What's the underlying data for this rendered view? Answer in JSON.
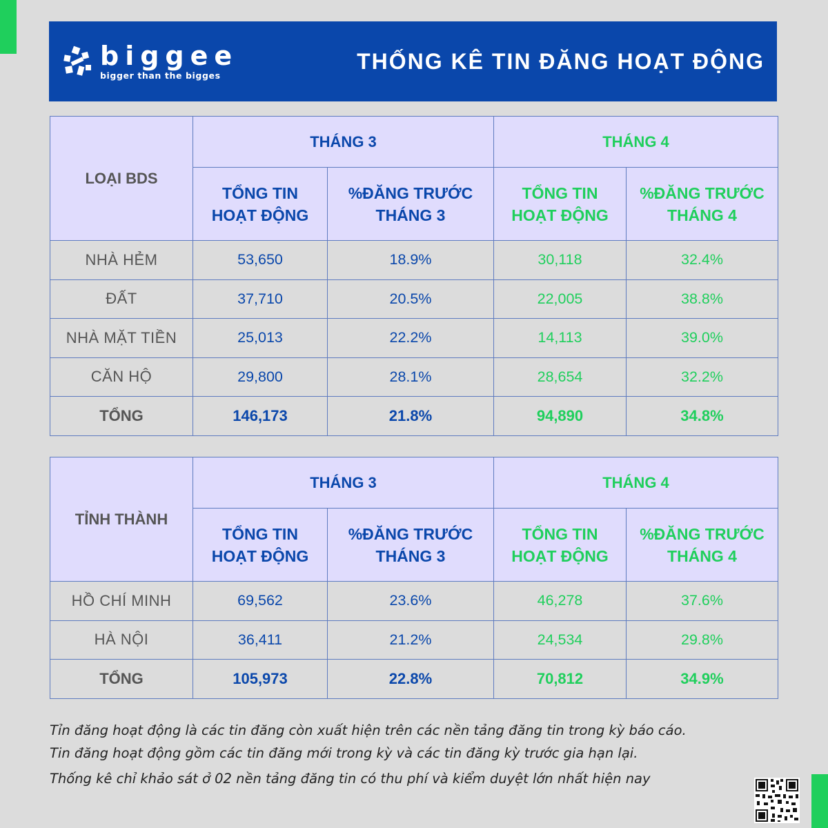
{
  "brand": {
    "name": "biggee",
    "tagline": "bigger than the bigges"
  },
  "header": {
    "title": "THỐNG KÊ TIN ĐĂNG HOẠT ĐỘNG"
  },
  "colors": {
    "header_bg": "#0a47ab",
    "header_cell_bg": "#e0dcfd",
    "month3": "#0a47ab",
    "month4": "#1fcf5c",
    "accent_bar": "#1fcf5c",
    "page_bg": "#dcdcdc"
  },
  "table1": {
    "corner": "LOẠI BDS",
    "month3": "THÁNG 3",
    "month4": "THÁNG 4",
    "col_total_line1": "TỔNG TIN",
    "col_total_line2": "HOẠT ĐỘNG",
    "col_pct3_line1": "%ĐĂNG TRƯỚC",
    "col_pct3_line2": "THÁNG 3",
    "col_pct4_line1": "%ĐĂNG TRƯỚC",
    "col_pct4_line2": "THÁNG 4",
    "rows": [
      {
        "label": "NHÀ HẺM",
        "t3_total": "53,650",
        "t3_pct": "18.9%",
        "t4_total": "30,118",
        "t4_pct": "32.4%"
      },
      {
        "label": "ĐẤT",
        "t3_total": "37,710",
        "t3_pct": "20.5%",
        "t4_total": "22,005",
        "t4_pct": "38.8%"
      },
      {
        "label": "NHÀ MẶT TIỀN",
        "t3_total": "25,013",
        "t3_pct": "22.2%",
        "t4_total": "14,113",
        "t4_pct": "39.0%"
      },
      {
        "label": "CĂN HỘ",
        "t3_total": "29,800",
        "t3_pct": "28.1%",
        "t4_total": "28,654",
        "t4_pct": "32.2%"
      }
    ],
    "total": {
      "label": "TỔNG",
      "t3_total": "146,173",
      "t3_pct": "21.8%",
      "t4_total": "94,890",
      "t4_pct": "34.8%"
    }
  },
  "table2": {
    "corner": "TỈNH THÀNH",
    "month3": "THÁNG 3",
    "month4": "THÁNG 4",
    "col_total_line1": "TỔNG TIN",
    "col_total_line2": "HOẠT ĐỘNG",
    "col_pct3_line1": "%ĐĂNG TRƯỚC",
    "col_pct3_line2": "THÁNG 3",
    "col_pct4_line1": "%ĐĂNG TRƯỚC",
    "col_pct4_line2": "THÁNG 4",
    "rows": [
      {
        "label": "HỒ CHÍ MINH",
        "t3_total": "69,562",
        "t3_pct": "23.6%",
        "t4_total": "46,278",
        "t4_pct": "37.6%"
      },
      {
        "label": "HÀ NỘI",
        "t3_total": "36,411",
        "t3_pct": "21.2%",
        "t4_total": "24,534",
        "t4_pct": "29.8%"
      }
    ],
    "total": {
      "label": "TỔNG",
      "t3_total": "105,973",
      "t3_pct": "22.8%",
      "t4_total": "70,812",
      "t4_pct": "34.9%"
    }
  },
  "notes": {
    "line1": "Tỉn đăng hoạt động là các tin đăng còn xuất hiện trên các nền tảng đăng tin trong kỳ báo cáo.",
    "line2": "Tin đăng hoạt động gồm các tin đăng mới trong kỳ và các tin đăng kỳ trước gia hạn lại.",
    "line3": "Thống kê chỉ khảo sát ở 02 nền tảng đăng tin có thu phí và kiểm duyệt lớn nhất hiện nay"
  }
}
